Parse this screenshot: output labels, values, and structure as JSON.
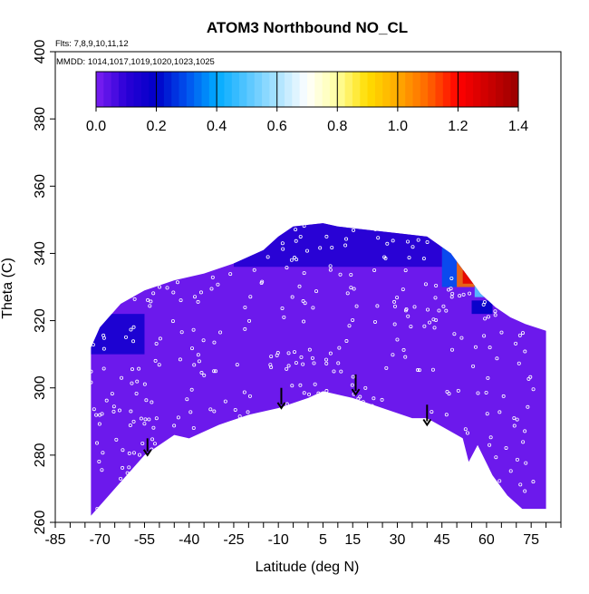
{
  "chart_data": {
    "type": "heatmap",
    "title": "ATOM3 Northbound NO_CL",
    "notes": {
      "flights": "Flts: 7,8,9,10,11,12",
      "dates": "MMDD: 1014,1017,1019,1020,1023,1025"
    },
    "xlabel": "Latitude (deg N)",
    "ylabel": "Theta (C)",
    "xlim": [
      -85,
      85
    ],
    "ylim": [
      260,
      400
    ],
    "x_ticks": [
      -85,
      -70,
      -55,
      -40,
      -25,
      -10,
      5,
      15,
      30,
      45,
      60,
      75
    ],
    "y_ticks": [
      260,
      280,
      300,
      320,
      340,
      360,
      380,
      400
    ],
    "colorbar": {
      "range": [
        0.0,
        1.4
      ],
      "ticks": [
        "0.0",
        "0.2",
        "0.4",
        "0.6",
        "0.8",
        "1.0",
        "1.2",
        "1.4"
      ],
      "stops": [
        {
          "v": 0.0,
          "color": "#7c1ff2"
        },
        {
          "v": 0.1,
          "color": "#2a00d6"
        },
        {
          "v": 0.2,
          "color": "#0000c8"
        },
        {
          "v": 0.3,
          "color": "#0050ee"
        },
        {
          "v": 0.4,
          "color": "#00aaff"
        },
        {
          "v": 0.55,
          "color": "#7fd4ff"
        },
        {
          "v": 0.7,
          "color": "#ffffff"
        },
        {
          "v": 0.8,
          "color": "#ffffa0"
        },
        {
          "v": 0.9,
          "color": "#ffdd00"
        },
        {
          "v": 1.0,
          "color": "#ffaa00"
        },
        {
          "v": 1.1,
          "color": "#ff6600"
        },
        {
          "v": 1.2,
          "color": "#ff0000"
        },
        {
          "v": 1.3,
          "color": "#cc0000"
        },
        {
          "v": 1.4,
          "color": "#990000"
        }
      ]
    },
    "boundary_top": [
      [
        -73,
        312
      ],
      [
        -70,
        318
      ],
      [
        -63,
        325
      ],
      [
        -55,
        329
      ],
      [
        -45,
        332
      ],
      [
        -35,
        334
      ],
      [
        -25,
        337
      ],
      [
        -15,
        341
      ],
      [
        -10,
        345
      ],
      [
        -5,
        348
      ],
      [
        5,
        349
      ],
      [
        10,
        348
      ],
      [
        20,
        347
      ],
      [
        30,
        346
      ],
      [
        40,
        345
      ],
      [
        48,
        340
      ],
      [
        53,
        334
      ],
      [
        58,
        328
      ],
      [
        63,
        324
      ],
      [
        68,
        321
      ],
      [
        73,
        319
      ],
      [
        80,
        317
      ]
    ],
    "boundary_bottom": [
      [
        -73,
        262
      ],
      [
        -67,
        268
      ],
      [
        -55,
        280
      ],
      [
        -45,
        286
      ],
      [
        -40,
        285
      ],
      [
        -30,
        289
      ],
      [
        -20,
        292
      ],
      [
        -10,
        294
      ],
      [
        0,
        297
      ],
      [
        5,
        299
      ],
      [
        15,
        297
      ],
      [
        25,
        294
      ],
      [
        35,
        291
      ],
      [
        40,
        291
      ],
      [
        48,
        287
      ],
      [
        52,
        285
      ],
      [
        54,
        278
      ],
      [
        57,
        283
      ],
      [
        62,
        274
      ],
      [
        67,
        268
      ],
      [
        72,
        264
      ],
      [
        80,
        264
      ]
    ],
    "overlays": [
      {
        "lat": [
          45,
          60
        ],
        "theta": [
          330,
          345
        ],
        "value": 0.3
      },
      {
        "lat": [
          50,
          56
        ],
        "theta": [
          330,
          340
        ],
        "value": 1.1
      },
      {
        "lat": [
          52,
          56
        ],
        "theta": [
          331,
          335
        ],
        "value": 1.25
      },
      {
        "lat": [
          56,
          60
        ],
        "theta": [
          327,
          332
        ],
        "value": 0.5
      },
      {
        "lat": [
          -73,
          -55
        ],
        "theta": [
          310,
          322
        ],
        "value": 0.15
      },
      {
        "lat": [
          -25,
          45
        ],
        "theta": [
          336,
          349
        ],
        "value": 0.12
      },
      {
        "lat": [
          55,
          62
        ],
        "theta": [
          322,
          326
        ],
        "value": 0.2
      }
    ],
    "background_value": 0.02,
    "arrows": [
      {
        "lat": -54,
        "theta_top": 285,
        "theta_bottom": 280
      },
      {
        "lat": -9,
        "theta_top": 300,
        "theta_bottom": 294
      },
      {
        "lat": 16,
        "theta_top": 304,
        "theta_bottom": 298
      },
      {
        "lat": 40,
        "theta_top": 295,
        "theta_bottom": 289
      }
    ]
  }
}
